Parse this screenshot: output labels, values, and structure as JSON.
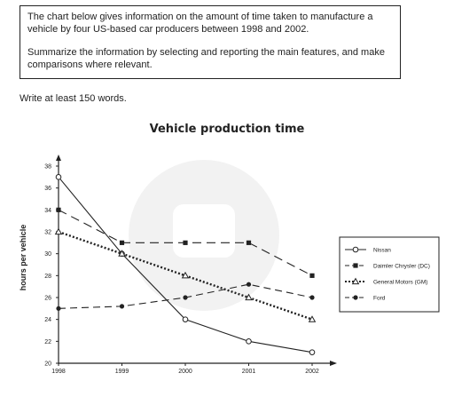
{
  "prompt": {
    "line1": "The chart below gives information on the amount of time taken to manufacture a vehicle by four US-based car producers between 1998 and 2002.",
    "line2": "Summarize the information by selecting and reporting the main features, and make comparisons where relevant."
  },
  "instruction": "Write at least 150 words.",
  "chart_data": {
    "type": "line",
    "title": "Vehicle production time",
    "xlabel": "",
    "ylabel": "hours per vehicle",
    "categories": [
      "1998",
      "1999",
      "2000",
      "2001",
      "2002"
    ],
    "ylim": [
      20,
      38
    ],
    "yticks": [
      "20",
      "22",
      "24",
      "26",
      "28",
      "30",
      "32",
      "34",
      "36",
      "38"
    ],
    "series": [
      {
        "name": "Nissan",
        "values": [
          37,
          30,
          24,
          22,
          21
        ],
        "style": "solid",
        "marker": "open-circle",
        "color": "#222222"
      },
      {
        "name": "Daimler Chrysler (DC)",
        "values": [
          34,
          31,
          31,
          31,
          28
        ],
        "style": "long-dash",
        "marker": "filled-square",
        "color": "#222222"
      },
      {
        "name": "General Motors (GM)",
        "values": [
          32,
          30,
          28,
          26,
          24
        ],
        "style": "dotted",
        "marker": "open-triangle",
        "color": "#222222"
      },
      {
        "name": "Ford",
        "values": [
          25,
          25.2,
          26,
          27.2,
          26
        ],
        "style": "dash",
        "marker": "filled-circle",
        "color": "#222222"
      }
    ],
    "legend_position": "right",
    "grid": false
  }
}
